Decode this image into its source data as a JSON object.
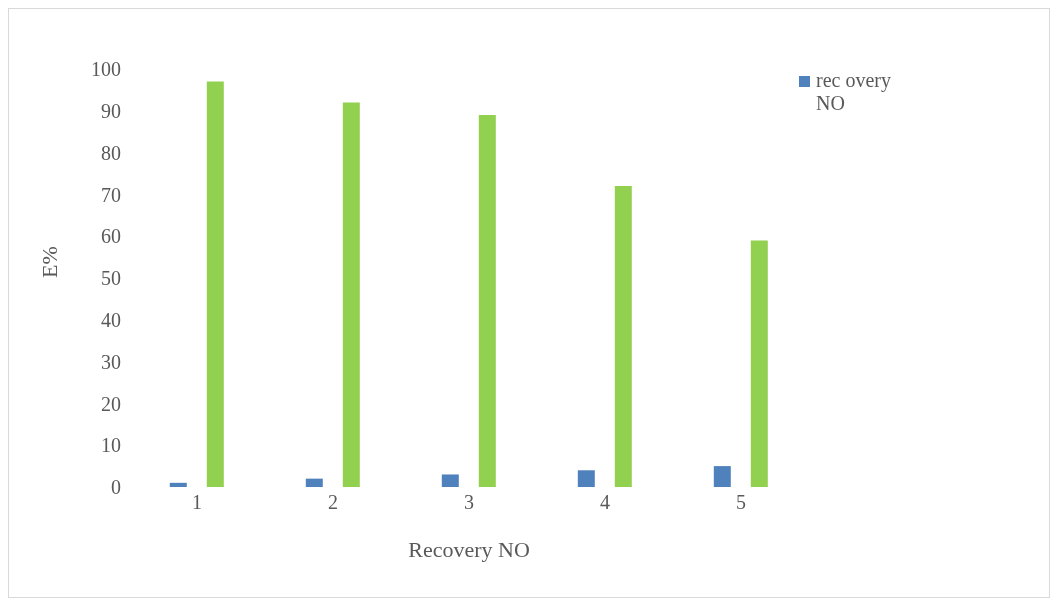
{
  "chart_data": {
    "type": "bar",
    "xlabel": "Recovery NO",
    "ylabel": "E%",
    "categories": [
      "1",
      "2",
      "3",
      "4",
      "5"
    ],
    "series": [
      {
        "name": "rec overy NO",
        "color": "#4f81bd",
        "values": [
          1,
          2,
          3,
          4,
          5
        ]
      },
      {
        "color": "#92d050",
        "values": [
          97,
          92,
          89,
          72,
          59
        ]
      }
    ],
    "ylim": [
      0,
      100
    ],
    "yticks": [
      0,
      10,
      20,
      30,
      40,
      50,
      60,
      70,
      80,
      90,
      100
    ],
    "grid": false,
    "legend": "top right"
  }
}
